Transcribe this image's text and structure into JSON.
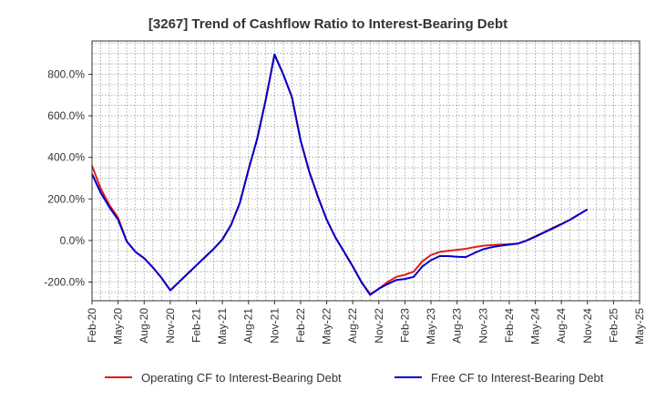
{
  "chart_data": {
    "type": "line",
    "title": "[3267]  Trend of Cashflow Ratio to Interest-Bearing Debt",
    "xlabel": "",
    "ylabel": "",
    "x_tick_labels": [
      "Feb-20",
      "May-20",
      "Aug-20",
      "Nov-20",
      "Feb-21",
      "May-21",
      "Aug-21",
      "Nov-21",
      "Feb-22",
      "May-22",
      "Aug-22",
      "Nov-22",
      "Feb-23",
      "May-23",
      "Aug-23",
      "Nov-23",
      "Feb-24",
      "May-24",
      "Aug-24",
      "Nov-24",
      "Feb-25",
      "May-25"
    ],
    "y_ticks": [
      -200,
      0,
      200,
      400,
      600,
      800
    ],
    "y_tick_labels": [
      "-200.0%",
      "0.0%",
      "200.0%",
      "400.0%",
      "600.0%",
      "800.0%"
    ],
    "ylim": [
      -290,
      960
    ],
    "x_range": [
      0,
      63
    ],
    "grid": true,
    "legend_position": "bottom",
    "x": [
      0,
      1,
      2,
      3,
      4,
      5,
      6,
      7,
      8,
      9,
      10,
      11,
      12,
      13,
      14,
      15,
      16,
      17,
      18,
      19,
      20,
      21,
      22,
      23,
      24,
      25,
      26,
      27,
      28,
      29,
      30,
      31,
      32,
      33,
      34,
      35,
      36,
      37,
      38,
      39,
      40,
      41,
      42,
      43,
      44,
      45,
      46,
      47,
      48,
      49,
      50,
      51,
      52,
      53,
      54,
      55,
      56,
      57
    ],
    "series": [
      {
        "name": "Operating CF to Interest-Bearing Debt",
        "color": "#e41a1c",
        "values": [
          360,
          250,
          170,
          110,
          -5,
          -55,
          -85,
          -130,
          -180,
          -240,
          -200,
          -160,
          -120,
          -80,
          -40,
          5,
          75,
          180,
          340,
          490,
          680,
          895,
          800,
          690,
          480,
          330,
          210,
          100,
          15,
          -55,
          -125,
          -200,
          -258,
          -232,
          -200,
          -175,
          -165,
          -150,
          -100,
          -70,
          -55,
          -50,
          -45,
          -40,
          -32,
          -25,
          -22,
          -20,
          -18,
          -15,
          0,
          20,
          40,
          60,
          80,
          100,
          125,
          150
        ]
      },
      {
        "name": "Free CF to Interest-Bearing Debt",
        "color": "#0000cc",
        "values": [
          320,
          230,
          160,
          100,
          -5,
          -55,
          -85,
          -130,
          -180,
          -240,
          -200,
          -160,
          -120,
          -80,
          -40,
          5,
          75,
          180,
          340,
          490,
          680,
          895,
          800,
          690,
          480,
          330,
          210,
          100,
          15,
          -55,
          -125,
          -200,
          -262,
          -232,
          -210,
          -190,
          -185,
          -175,
          -125,
          -95,
          -75,
          -75,
          -78,
          -80,
          -60,
          -42,
          -32,
          -25,
          -20,
          -15,
          0,
          18,
          38,
          58,
          78,
          100,
          125,
          150
        ]
      }
    ]
  }
}
